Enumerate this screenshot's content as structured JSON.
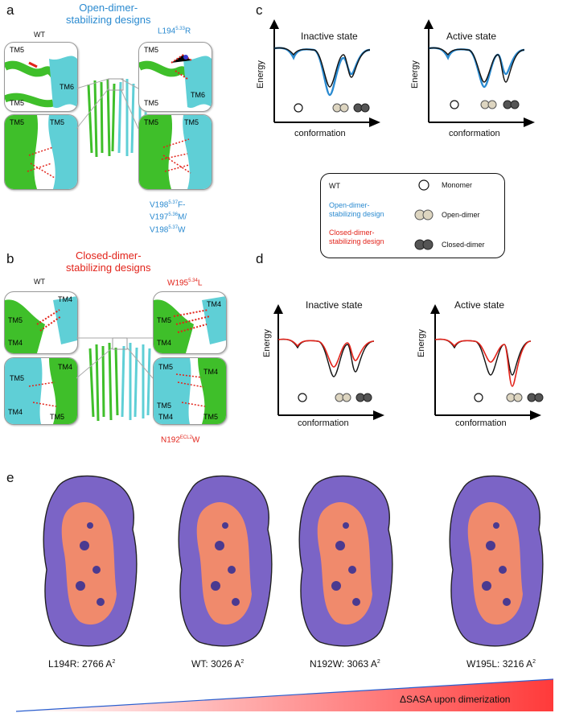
{
  "panel_a": {
    "letter": "a",
    "title": "Open-dimer-\nstabilizing designs",
    "wt_label": "WT",
    "mut_top": "L194",
    "mut_top_sup": "5.33",
    "mut_top_tail": "R",
    "mut_bottom_l1": "V198",
    "mut_bottom_l1_sup": "5.37",
    "mut_bottom_l1_tail": "F-",
    "mut_bottom_l2": "V197",
    "mut_bottom_l2_sup": "5.36",
    "mut_bottom_l2_tail": "M/",
    "mut_bottom_l3": "V198",
    "mut_bottom_l3_sup": "5.37",
    "mut_bottom_l3_tail": "W",
    "tm5": "TM5",
    "tm6": "TM6"
  },
  "panel_b": {
    "letter": "b",
    "title": "Closed-dimer-\nstabilizing designs",
    "wt_label": "WT",
    "mut_top": "W195",
    "mut_top_sup": "5.34",
    "mut_top_tail": "L",
    "mut_bottom": "N192",
    "mut_bottom_sup": "ECL2",
    "mut_bottom_tail": "W",
    "tm4": "TM4",
    "tm5": "TM5"
  },
  "panel_c": {
    "letter": "c",
    "left_title": "Inactive state",
    "right_title": "Active state",
    "ylabel": "Energy",
    "xlabel": "conformation"
  },
  "panel_d": {
    "letter": "d",
    "left_title": "Inactive state",
    "right_title": "Active state",
    "ylabel": "Energy",
    "xlabel": "conformation"
  },
  "legend": {
    "wt": "WT",
    "open": "Open-dimer-\nstabilizing design",
    "closed": "Closed-dimer-\nstabilizing design",
    "monomer": "Monomer",
    "open_dimer": "Open-dimer",
    "closed_dimer": "Closed-dimer"
  },
  "colors": {
    "wt": "#111111",
    "open": "#2a8ad0",
    "closed": "#e2231a",
    "surface_purple": "#7b64c6",
    "surface_salmon": "#f08a6c",
    "helix_green": "#3fbf2a",
    "helix_cyan": "#5fcfd6"
  },
  "panel_e": {
    "letter": "e",
    "labels": [
      {
        "name": "L194R",
        "value": "2766",
        "unit": "A"
      },
      {
        "name": "WT",
        "value": "3026",
        "unit": "A"
      },
      {
        "name": "N192W",
        "value": "3063",
        "unit": "A"
      },
      {
        "name": "W195L",
        "value": "3216",
        "unit": "A"
      }
    ],
    "sup": "2",
    "gradient_label": "ΔSASA upon dimerization"
  }
}
